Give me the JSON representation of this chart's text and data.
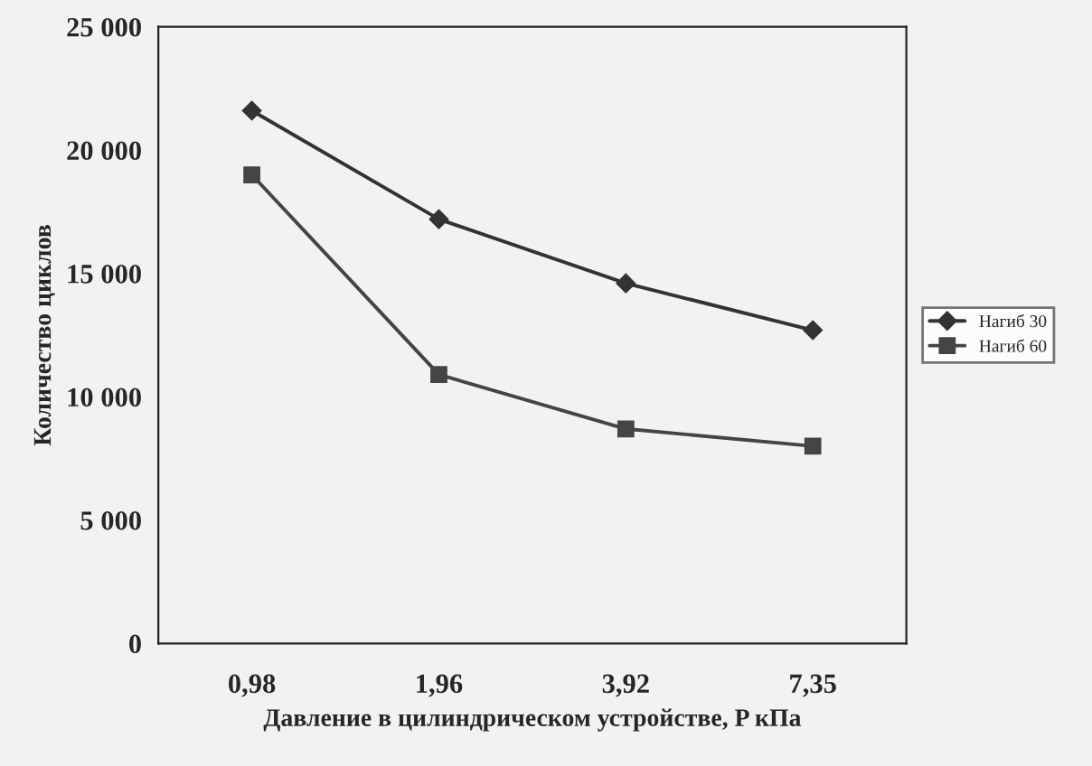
{
  "chart_data": {
    "type": "line",
    "xlabel": "Давление в цилиндрическом устройстве, P кПа",
    "ylabel": "Количество циклов",
    "categories": [
      "0,98",
      "1,96",
      "3,92",
      "7,35"
    ],
    "series": [
      {
        "name": "Нагиб 30",
        "color": "#333333",
        "marker": "diamond",
        "values": [
          21600,
          17200,
          14600,
          12700
        ]
      },
      {
        "name": "Нагиб 60",
        "color": "#444444",
        "marker": "square",
        "values": [
          19000,
          10900,
          8700,
          8000
        ]
      }
    ],
    "ylim": [
      0,
      25000
    ],
    "yticks": [
      {
        "value": 0,
        "label": "0"
      },
      {
        "value": 5000,
        "label": "5 000"
      },
      {
        "value": 10000,
        "label": "10 000"
      },
      {
        "value": 15000,
        "label": "15 000"
      },
      {
        "value": 20000,
        "label": "20 000"
      },
      {
        "value": 25000,
        "label": "25 000"
      }
    ],
    "grid": false,
    "legend": "right"
  }
}
